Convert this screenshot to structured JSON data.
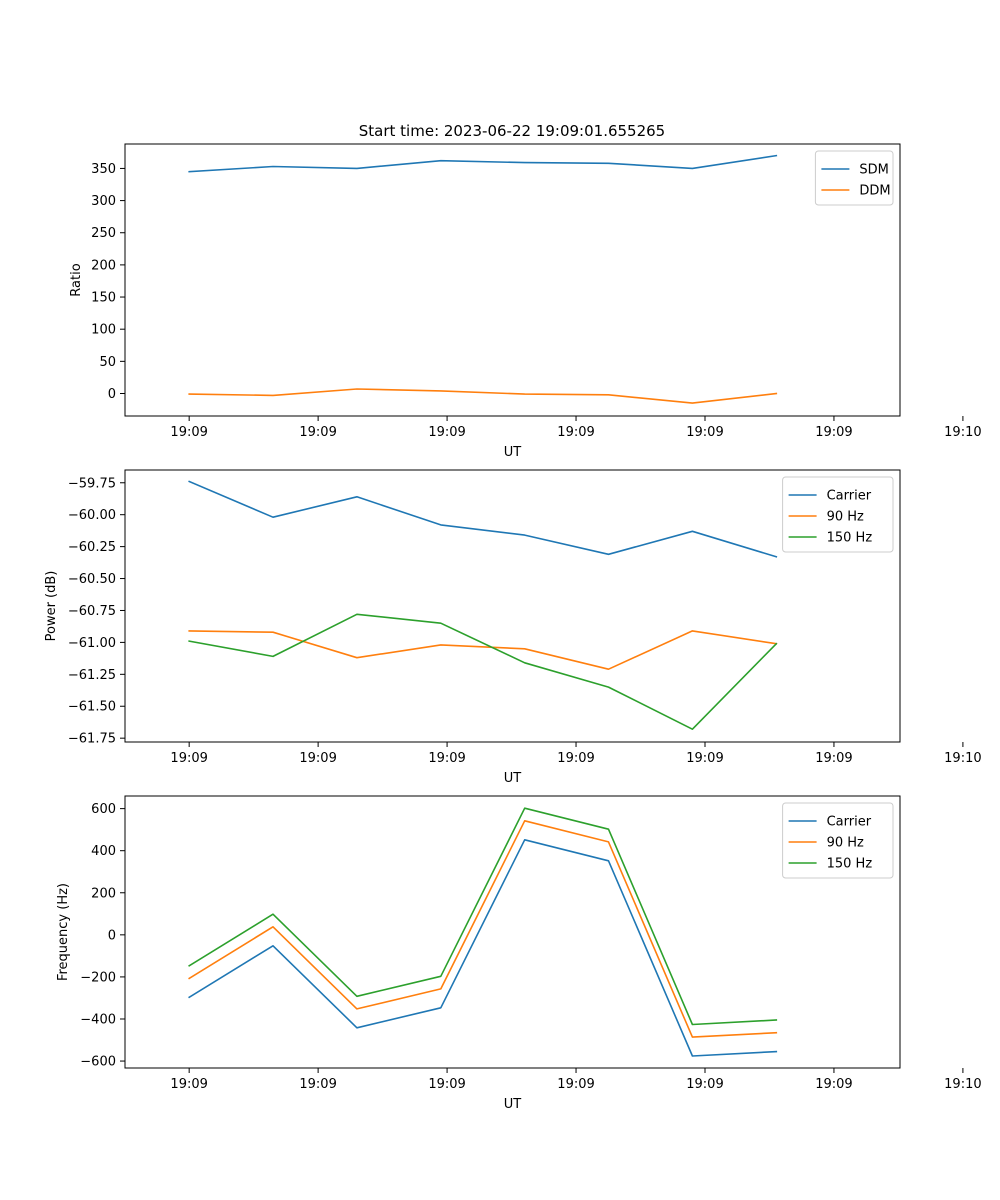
{
  "figure": {
    "title": "Start time: 2023-06-22 19:09:01.655265"
  },
  "chart_data": [
    {
      "type": "line",
      "title": "",
      "xlabel": "UT",
      "ylabel": "Ratio",
      "x_tick_labels": [
        "19:09",
        "19:09",
        "19:09",
        "19:09",
        "19:09",
        "19:09",
        "19:10"
      ],
      "x": [
        1,
        2,
        3,
        4,
        5,
        6,
        7,
        8
      ],
      "xlim": [
        0.235,
        9.475
      ],
      "ylim": [
        -35,
        388
      ],
      "y_ticks": [
        0,
        50,
        100,
        150,
        200,
        250,
        300,
        350
      ],
      "legend": "top-right",
      "grid": false,
      "series": [
        {
          "name": "SDM",
          "color": "#1f77b4",
          "values": [
            345,
            353,
            350,
            362,
            359,
            358,
            350,
            370
          ]
        },
        {
          "name": "DDM",
          "color": "#ff7f0e",
          "values": [
            -1,
            -3,
            7,
            4,
            -1,
            -2,
            -15,
            0
          ]
        }
      ]
    },
    {
      "type": "line",
      "title": "",
      "xlabel": "UT",
      "ylabel": "Power (dB)",
      "x_tick_labels": [
        "19:09",
        "19:09",
        "19:09",
        "19:09",
        "19:09",
        "19:09",
        "19:10"
      ],
      "x": [
        1,
        2,
        3,
        4,
        5,
        6,
        7,
        8
      ],
      "xlim": [
        0.235,
        9.475
      ],
      "ylim": [
        -61.78,
        -59.65
      ],
      "y_ticks": [
        -61.75,
        -61.5,
        -61.25,
        -61.0,
        -60.75,
        -60.5,
        -60.25,
        -60.0,
        -59.75
      ],
      "y_tick_labels": [
        "−61.75",
        "−61.50",
        "−61.25",
        "−61.00",
        "−60.75",
        "−60.50",
        "−60.25",
        "−60.00",
        "−59.75"
      ],
      "legend": "top-right",
      "grid": false,
      "series": [
        {
          "name": "Carrier",
          "color": "#1f77b4",
          "values": [
            -59.74,
            -60.02,
            -59.86,
            -60.08,
            -60.16,
            -60.31,
            -60.13,
            -60.33
          ]
        },
        {
          "name": "90 Hz",
          "color": "#ff7f0e",
          "values": [
            -60.91,
            -60.92,
            -61.12,
            -61.02,
            -61.05,
            -61.21,
            -60.91,
            -61.01
          ]
        },
        {
          "name": "150 Hz",
          "color": "#2ca02c",
          "values": [
            -60.99,
            -61.11,
            -60.78,
            -60.85,
            -61.16,
            -61.35,
            -61.68,
            -61.01
          ]
        }
      ]
    },
    {
      "type": "line",
      "title": "",
      "xlabel": "UT",
      "ylabel": "Frequency (Hz)",
      "x_tick_labels": [
        "19:09",
        "19:09",
        "19:09",
        "19:09",
        "19:09",
        "19:09",
        "19:10"
      ],
      "x": [
        1,
        2,
        3,
        4,
        5,
        6,
        7,
        8
      ],
      "xlim": [
        0.235,
        9.475
      ],
      "ylim": [
        -633,
        660
      ],
      "y_ticks": [
        -600,
        -400,
        -200,
        0,
        200,
        400,
        600
      ],
      "y_tick_labels": [
        "−600",
        "−400",
        "−200",
        "0",
        "200",
        "400",
        "600"
      ],
      "legend": "top-right",
      "grid": false,
      "series": [
        {
          "name": "Carrier",
          "color": "#1f77b4",
          "values": [
            -297,
            -52,
            -442,
            -347,
            452,
            352,
            -576,
            -555
          ]
        },
        {
          "name": "90 Hz",
          "color": "#ff7f0e",
          "values": [
            -207,
            38,
            -352,
            -257,
            542,
            442,
            -486,
            -465
          ]
        },
        {
          "name": "150 Hz",
          "color": "#2ca02c",
          "values": [
            -147,
            98,
            -292,
            -197,
            602,
            502,
            -426,
            -405
          ]
        }
      ]
    }
  ]
}
